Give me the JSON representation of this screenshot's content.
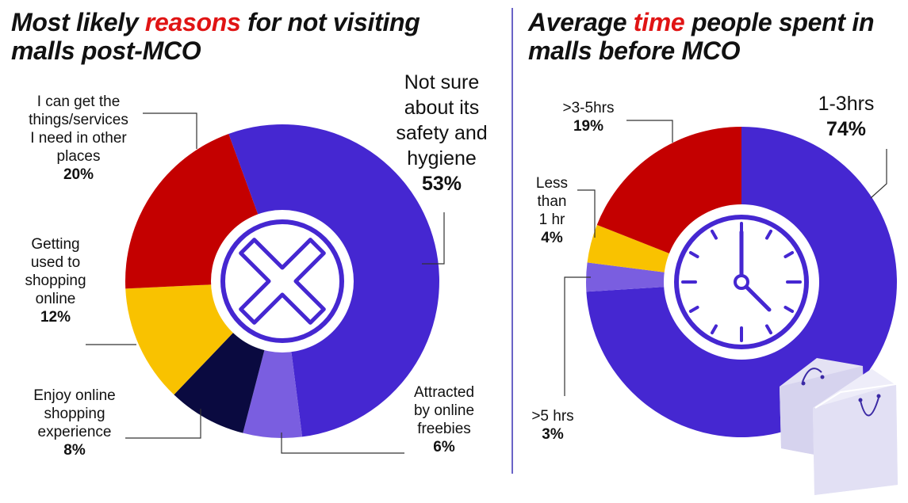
{
  "titles": {
    "left": {
      "pre": "Most likely ",
      "highlight": "reasons",
      "post": " for not visiting malls post-MCO"
    },
    "right": {
      "pre": "Average ",
      "highlight": "time",
      "post": " people spent in malls before MCO"
    }
  },
  "colors": {
    "accent": "#e01414",
    "purple": "#4527d1",
    "red": "#c40000",
    "yellow": "#f9c200",
    "navy": "#0a0a40",
    "lavender": "#7a5ee0",
    "divider": "#6a64c7"
  },
  "icons": {
    "left_center": "x-circle-icon",
    "right_center": "clock-icon",
    "corner": "shopping-bags-icon"
  },
  "chart_data": [
    {
      "type": "pie",
      "title": "Most likely reasons for not visiting malls post-MCO",
      "slices": [
        {
          "label": "Not sure about its safety and hygiene",
          "value": 53,
          "display": "53%",
          "color": "#4527d1"
        },
        {
          "label": "Attracted by online freebies",
          "value": 6,
          "display": "6%",
          "color": "#7a5ee0"
        },
        {
          "label": "Enjoy online shopping experience",
          "value": 8,
          "display": "8%",
          "color": "#0a0a40"
        },
        {
          "label": "Getting used to shopping online",
          "value": 12,
          "display": "12%",
          "color": "#f9c200"
        },
        {
          "label": "I can get the things/services I need in other places",
          "value": 20,
          "display": "20%",
          "color": "#c40000"
        }
      ]
    },
    {
      "type": "pie",
      "title": "Average time people spent in malls before MCO",
      "slices": [
        {
          "label": "1-3hrs",
          "value": 74,
          "display": "74%",
          "color": "#4527d1"
        },
        {
          "label": ">5 hrs",
          "value": 3,
          "display": "3%",
          "color": "#7a5ee0"
        },
        {
          "label": "Less than 1 hr",
          "value": 4,
          "display": "4%",
          "color": "#f9c200"
        },
        {
          "label": ">3-5hrs",
          "value": 19,
          "display": "19%",
          "color": "#c40000"
        }
      ]
    }
  ],
  "labels": {
    "left": [
      {
        "text": "Not sure\nabout its\nsafety and\nhygiene",
        "pct": "53%"
      },
      {
        "text": "Attracted\nby online\nfreebies",
        "pct": "6%"
      },
      {
        "text": "Enjoy online\nshopping\nexperience",
        "pct": "8%"
      },
      {
        "text": "Getting\nused to\nshopping\nonline",
        "pct": "12%"
      },
      {
        "text": "I can get the\nthings/services\nI need in other\nplaces",
        "pct": "20%"
      }
    ],
    "right": [
      {
        "text": "1-3hrs",
        "pct": "74%"
      },
      {
        "text": ">5 hrs",
        "pct": "3%"
      },
      {
        "text": "Less\nthan\n1 hr",
        "pct": "4%"
      },
      {
        "text": ">3-5hrs",
        "pct": "19%"
      }
    ]
  }
}
